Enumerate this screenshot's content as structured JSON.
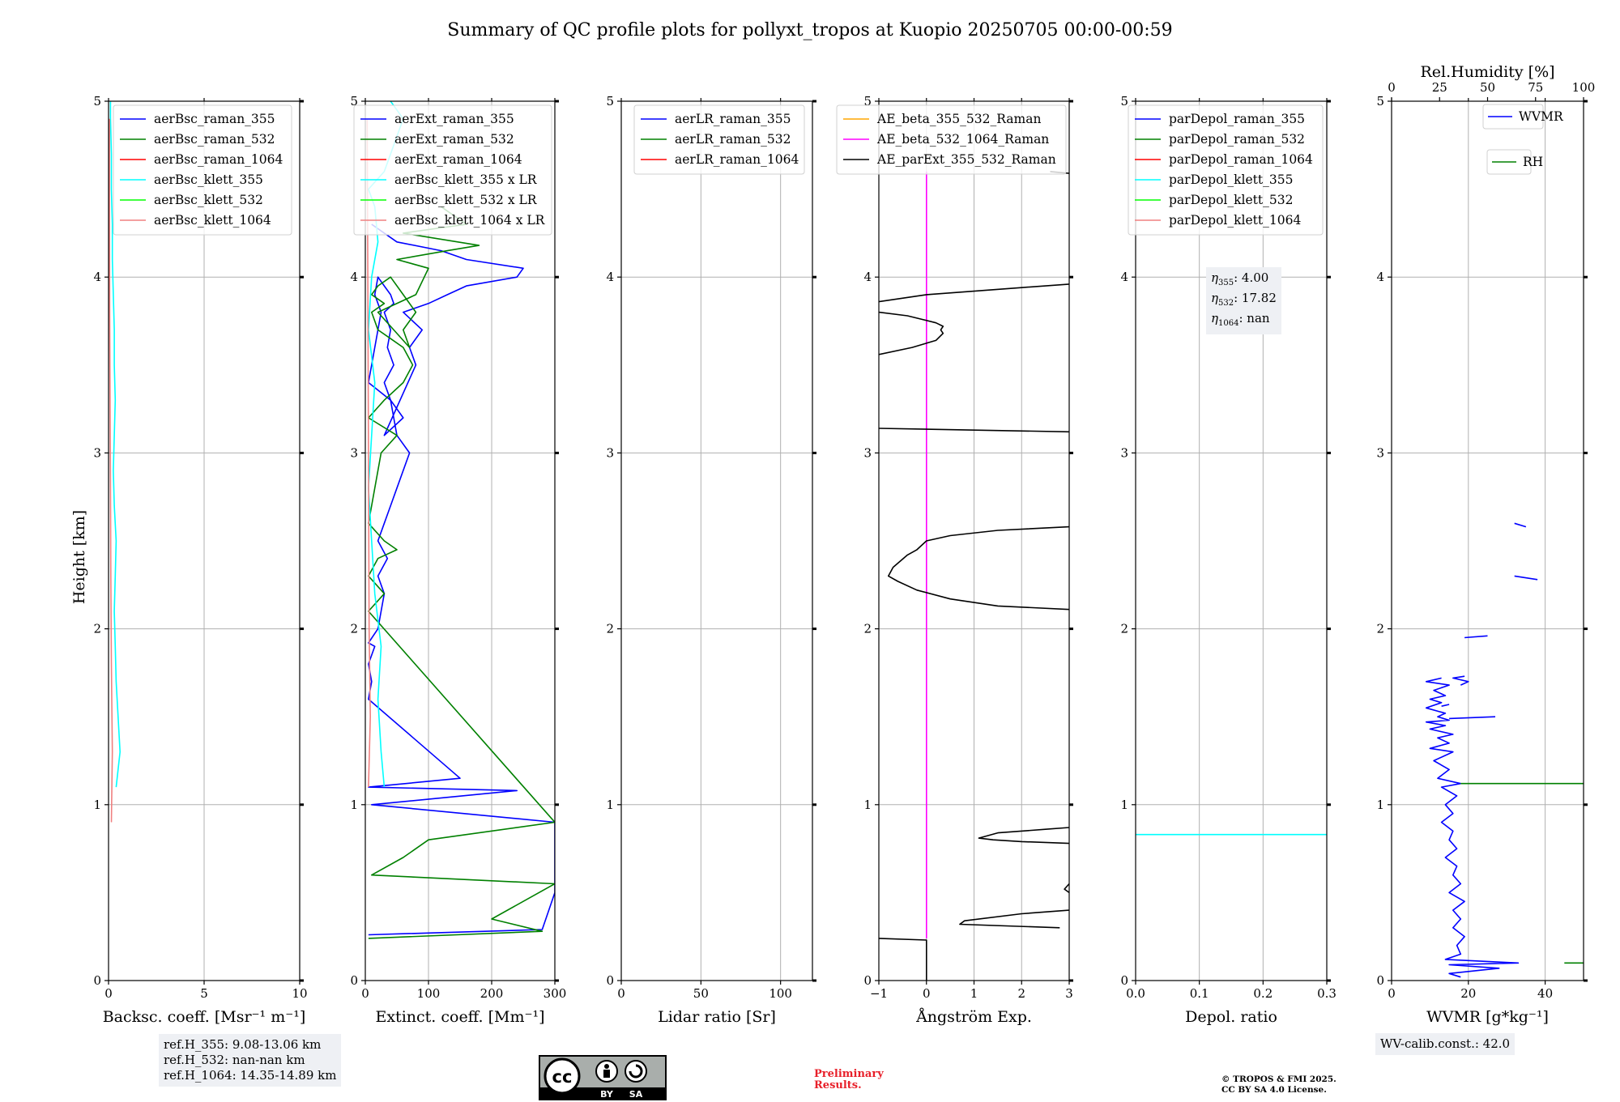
{
  "title": "Summary of QC profile plots for pollyxt_tropos at Kuopio 20250705 00:00-00:59",
  "colors": {
    "blue": "#0000ff",
    "green": "#008000",
    "red": "#ff0000",
    "cyan": "#00ffff",
    "lime": "#00ff00",
    "salmon": "#f08080",
    "orange": "#ffa500",
    "magenta": "#ff00ff",
    "black": "#000000",
    "grid": "#b0b0b0"
  },
  "chart_data": [
    {
      "type": "line",
      "ylabel": "Height [km]",
      "ylim": [
        0,
        5
      ],
      "yticks": [
        "0",
        "1",
        "2",
        "3",
        "4",
        "5"
      ],
      "xlabel": "Backsc. coeff. [Msr⁻¹ m⁻¹]",
      "xlim": [
        0,
        10
      ],
      "xtick_values": [
        0,
        5,
        10
      ],
      "xtick_labels": [
        "0",
        "5",
        "10"
      ],
      "legend": [
        "aerBsc_raman_355",
        "aerBsc_raman_532",
        "aerBsc_raman_1064",
        "aerBsc_klett_355",
        "aerBsc_klett_532",
        "aerBsc_klett_1064"
      ],
      "legend_colors": [
        "#0000ff",
        "#008000",
        "#ff0000",
        "#00ffff",
        "#00ff00",
        "#f08080"
      ],
      "series": [
        {
          "name": "aerBsc_klett_355",
          "color": "#00ffff",
          "x": [
            0.4,
            0.6,
            0.5,
            0.4,
            0.35,
            0.3,
            0.35,
            0.4,
            0.3,
            0.25,
            0.3,
            0.35,
            0.3,
            0.3,
            0.25,
            0.2,
            0.2,
            0.15,
            0.15,
            0.1,
            0.1
          ],
          "y": [
            1.1,
            1.3,
            1.5,
            1.7,
            1.9,
            2.1,
            2.3,
            2.5,
            2.7,
            2.9,
            3.1,
            3.3,
            3.5,
            3.7,
            3.9,
            4.1,
            4.3,
            4.5,
            4.7,
            4.9,
            5.0
          ]
        },
        {
          "name": "aerBsc_klett_1064",
          "color": "#f08080",
          "x": [
            0.15,
            0.2,
            0.15,
            0.12,
            0.1,
            0.08,
            0.06,
            0.05,
            0.05
          ],
          "y": [
            0.9,
            1.3,
            1.8,
            2.3,
            2.8,
            3.3,
            3.8,
            4.3,
            4.9
          ]
        }
      ]
    },
    {
      "type": "line",
      "xlabel": "Extinct. coeff. [Mm⁻¹]",
      "xlim": [
        0,
        300
      ],
      "ylim": [
        0,
        5
      ],
      "xtick_values": [
        0,
        100,
        200,
        300
      ],
      "xtick_labels": [
        "0",
        "100",
        "200",
        "300"
      ],
      "legend": [
        "aerExt_raman_355",
        "aerExt_raman_532",
        "aerExt_raman_1064",
        "aerBsc_klett_355 x LR",
        "aerBsc_klett_532 x LR",
        "aerBsc_klett_1064 x LR"
      ],
      "legend_colors": [
        "#0000ff",
        "#008000",
        "#ff0000",
        "#00ffff",
        "#00ff00",
        "#f08080"
      ],
      "series": [
        {
          "name": "aerExt_raman_355",
          "color": "#0000ff",
          "x": [
            5,
            280,
            300,
            300,
            10,
            240,
            5,
            150,
            5,
            10,
            5,
            15,
            5,
            20,
            25,
            30,
            20,
            35,
            20,
            30,
            40,
            50,
            70,
            50,
            45,
            40,
            30,
            45,
            35,
            40,
            30,
            45,
            40,
            30,
            20,
            15,
            25,
            5,
            40,
            60,
            30,
            80,
            70,
            90,
            60,
            100,
            130,
            160,
            240,
            250,
            160,
            120,
            50,
            10
          ],
          "y": [
            0.26,
            0.29,
            0.5,
            0.9,
            1.0,
            1.08,
            1.1,
            1.15,
            1.6,
            1.7,
            1.8,
            1.9,
            1.92,
            2.0,
            2.1,
            2.2,
            2.3,
            2.4,
            2.5,
            2.6,
            2.7,
            2.8,
            3.0,
            3.1,
            3.2,
            3.3,
            3.4,
            3.5,
            3.6,
            3.7,
            3.8,
            3.85,
            3.9,
            3.95,
            4.0,
            3.9,
            3.8,
            3.4,
            3.3,
            3.2,
            3.1,
            3.5,
            3.6,
            3.7,
            3.8,
            3.85,
            3.9,
            3.95,
            4.0,
            4.05,
            4.1,
            4.15,
            4.2,
            4.3
          ]
        },
        {
          "name": "aerExt_raman_532",
          "color": "#008000",
          "x": [
            5,
            280,
            200,
            300,
            10,
            60,
            100,
            300,
            5,
            30,
            5,
            20,
            50,
            30,
            5,
            25,
            50,
            5,
            30,
            60,
            75,
            60,
            40,
            20,
            10,
            30,
            10,
            20,
            40,
            60,
            80,
            60,
            70,
            20,
            80,
            100,
            50,
            130,
            180,
            60,
            160,
            120
          ],
          "y": [
            0.24,
            0.28,
            0.35,
            0.55,
            0.6,
            0.7,
            0.8,
            0.9,
            2.1,
            2.2,
            2.3,
            2.4,
            2.45,
            2.5,
            2.6,
            3.0,
            3.1,
            3.2,
            3.3,
            3.4,
            3.5,
            3.6,
            3.65,
            3.7,
            3.8,
            3.85,
            3.9,
            3.95,
            4.0,
            3.9,
            3.8,
            3.7,
            3.6,
            3.8,
            3.9,
            4.05,
            4.1,
            4.15,
            4.18,
            4.25,
            4.3,
            4.4
          ]
        },
        {
          "name": "aerBsc_klett_355 x LR",
          "color": "#00ffff",
          "x": [
            30,
            25,
            20,
            25,
            15,
            10,
            5,
            10,
            15,
            5,
            10,
            20,
            15,
            5,
            30,
            40,
            50,
            60,
            40
          ],
          "y": [
            1.1,
            1.3,
            1.6,
            1.9,
            2.2,
            2.5,
            2.8,
            3.1,
            3.4,
            3.7,
            4.0,
            4.2,
            4.4,
            4.5,
            4.6,
            4.7,
            4.8,
            4.9,
            5.0
          ]
        },
        {
          "name": "aerBsc_klett_1064 x LR",
          "color": "#f08080",
          "x": [
            5,
            8,
            6,
            5,
            4,
            3
          ],
          "y": [
            1.1,
            1.5,
            2.0,
            3.0,
            4.0,
            4.9
          ]
        }
      ]
    },
    {
      "type": "line",
      "xlabel": "Lidar ratio [Sr]",
      "xlim": [
        0,
        120
      ],
      "ylim": [
        0,
        5
      ],
      "xtick_values": [
        0,
        50,
        100
      ],
      "xtick_labels": [
        "0",
        "50",
        "100"
      ],
      "legend": [
        "aerLR_raman_355",
        "aerLR_raman_532",
        "aerLR_raman_1064"
      ],
      "legend_colors": [
        "#0000ff",
        "#008000",
        "#ff0000"
      ],
      "series": []
    },
    {
      "type": "line",
      "xlabel": "Ångström Exp.",
      "xlim": [
        -1,
        3
      ],
      "ylim": [
        0,
        5
      ],
      "xtick_values": [
        -1,
        0,
        1,
        2,
        3
      ],
      "xtick_labels": [
        "−1",
        "0",
        "1",
        "2",
        "3"
      ],
      "legend": [
        "AE_beta_355_532_Raman",
        "AE_beta_532_1064_Raman",
        "AE_parExt_355_532_Raman"
      ],
      "legend_colors": [
        "#ffa500",
        "#ff00ff",
        "#000000"
      ],
      "series": [
        {
          "name": "AE_beta_532_1064_Raman",
          "color": "#ff00ff",
          "x": [
            0,
            0
          ],
          "y": [
            0.24,
            4.6
          ]
        },
        {
          "name": "AE_parExt_355_532_Raman",
          "color": "#000000",
          "segments": [
            {
              "x": [
                -1,
                0,
                0
              ],
              "y": [
                0.24,
                0.23,
                0.0
              ]
            },
            {
              "x": [
                2.8,
                0.7,
                0.8,
                2.0,
                3.0
              ],
              "y": [
                0.3,
                0.32,
                0.34,
                0.38,
                0.4
              ]
            },
            {
              "x": [
                3.0,
                2.9,
                3.0
              ],
              "y": [
                0.5,
                0.52,
                0.55
              ]
            },
            {
              "x": [
                3.0,
                2.0,
                1.4,
                1.1,
                1.5,
                2.5,
                3.0
              ],
              "y": [
                0.78,
                0.79,
                0.8,
                0.81,
                0.84,
                0.86,
                0.87
              ]
            },
            {
              "x": [
                3.0,
                1.5,
                0.5,
                -0.2,
                -0.6,
                -0.8,
                -0.7,
                -0.4,
                -0.2,
                0.0,
                0.5,
                1.5,
                3.0
              ],
              "y": [
                2.11,
                2.13,
                2.17,
                2.22,
                2.27,
                2.3,
                2.35,
                2.42,
                2.45,
                2.5,
                2.53,
                2.56,
                2.58
              ]
            },
            {
              "x": [
                -1,
                3
              ],
              "y": [
                3.14,
                3.12
              ]
            },
            {
              "x": [
                -1,
                -0.3,
                0.2,
                0.35,
                0.3,
                0.35,
                0.2,
                -0.4,
                -1.0
              ],
              "y": [
                3.56,
                3.6,
                3.64,
                3.68,
                3.7,
                3.72,
                3.74,
                3.78,
                3.8
              ]
            },
            {
              "x": [
                -1,
                0,
                2,
                3
              ],
              "y": [
                3.86,
                3.9,
                3.94,
                3.96
              ]
            },
            {
              "x": [
                2.6,
                3.0
              ],
              "y": [
                4.6,
                4.59
              ]
            }
          ]
        }
      ]
    },
    {
      "type": "line",
      "xlabel": "Depol. ratio",
      "xlim": [
        0,
        0.3
      ],
      "ylim": [
        0,
        5
      ],
      "xtick_values": [
        0,
        0.1,
        0.2,
        0.3
      ],
      "xtick_labels": [
        "0.0",
        "0.1",
        "0.2",
        "0.3"
      ],
      "legend": [
        "parDepol_raman_355",
        "parDepol_raman_532",
        "parDepol_raman_1064",
        "parDepol_klett_355",
        "parDepol_klett_532",
        "parDepol_klett_1064"
      ],
      "legend_colors": [
        "#0000ff",
        "#008000",
        "#ff0000",
        "#00ffff",
        "#00ff00",
        "#f08080"
      ],
      "annotation": {
        "eta355": "4.00",
        "eta532": "17.82",
        "eta1064": "nan"
      },
      "series": [
        {
          "name": "parDepol_klett_355",
          "color": "#00ffff",
          "x": [
            0,
            0.3
          ],
          "y": [
            0.83,
            0.83
          ]
        }
      ]
    },
    {
      "type": "line",
      "xlabel": "WVMR [g*kg⁻¹]",
      "xlim": [
        0,
        50
      ],
      "ylim": [
        0,
        5
      ],
      "xtick_values": [
        0,
        20,
        40
      ],
      "xtick_labels": [
        "0",
        "20",
        "40"
      ],
      "x2label": "Rel.Humidity [%]",
      "x2lim": [
        0,
        100
      ],
      "x2tick_values": [
        0,
        25,
        50,
        75,
        100
      ],
      "x2tick_labels": [
        "0",
        "25",
        "50",
        "75",
        "100"
      ],
      "legend": [
        "WVMR",
        "RH"
      ],
      "legend_colors": [
        "#0000ff",
        "#008000"
      ],
      "series": [
        {
          "name": "WVMR",
          "color": "#0000ff",
          "segments": [
            {
              "x": [
                18,
                15,
                28,
                15,
                33,
                14,
                18,
                17,
                19,
                16,
                18,
                16,
                19,
                15,
                18,
                16,
                17,
                14,
                17,
                15,
                16,
                13,
                16,
                14,
                17,
                13,
                18,
                12,
                15,
                11,
                16,
                10,
                15,
                12,
                16,
                10,
                14,
                9,
                15,
                12,
                14,
                9,
                13,
                10,
                14,
                11,
                15,
                9,
                13
              ],
              "y": [
                0.02,
                0.04,
                0.07,
                0.09,
                0.1,
                0.12,
                0.15,
                0.2,
                0.25,
                0.3,
                0.35,
                0.4,
                0.45,
                0.5,
                0.55,
                0.6,
                0.65,
                0.7,
                0.75,
                0.8,
                0.85,
                0.9,
                0.95,
                1.0,
                1.05,
                1.1,
                1.12,
                1.15,
                1.2,
                1.25,
                1.3,
                1.32,
                1.35,
                1.38,
                1.4,
                1.43,
                1.45,
                1.47,
                1.48,
                1.5,
                1.52,
                1.55,
                1.58,
                1.6,
                1.62,
                1.65,
                1.68,
                1.7,
                1.72
              ]
            },
            {
              "x": [
                18,
                20,
                16,
                19
              ],
              "y": [
                1.68,
                1.7,
                1.72,
                1.73
              ]
            },
            {
              "x": [
                15,
                27
              ],
              "y": [
                1.49,
                1.5
              ]
            },
            {
              "x": [
                13,
                15
              ],
              "y": [
                1.56,
                1.57
              ]
            },
            {
              "x": [
                19,
                25
              ],
              "y": [
                1.95,
                1.96
              ]
            },
            {
              "x": [
                32,
                38
              ],
              "y": [
                2.3,
                2.28
              ]
            },
            {
              "x": [
                32,
                35
              ],
              "y": [
                2.6,
                2.58
              ]
            }
          ]
        },
        {
          "name": "RH",
          "color": "#008000",
          "axis": "x2",
          "segments": [
            {
              "x": [
                36,
                100
              ],
              "y": [
                1.12,
                1.12
              ]
            },
            {
              "x": [
                90,
                100
              ],
              "y": [
                0.1,
                0.1
              ]
            }
          ]
        }
      ]
    }
  ],
  "info": {
    "refh": [
      "ref.H_355: 9.08-13.06 km",
      "ref.H_532: nan-nan km",
      "ref.H_1064: 14.35-14.89 km"
    ],
    "wv_calib": "WV-calib.const.: 42.0",
    "preliminary": [
      "Preliminary",
      "Results."
    ],
    "copyright": [
      "© TROPOS & FMI 2025.",
      "CC BY SA 4.0 License."
    ],
    "license_labels": [
      "BY",
      "SA"
    ],
    "license_logo_text": "cc"
  }
}
